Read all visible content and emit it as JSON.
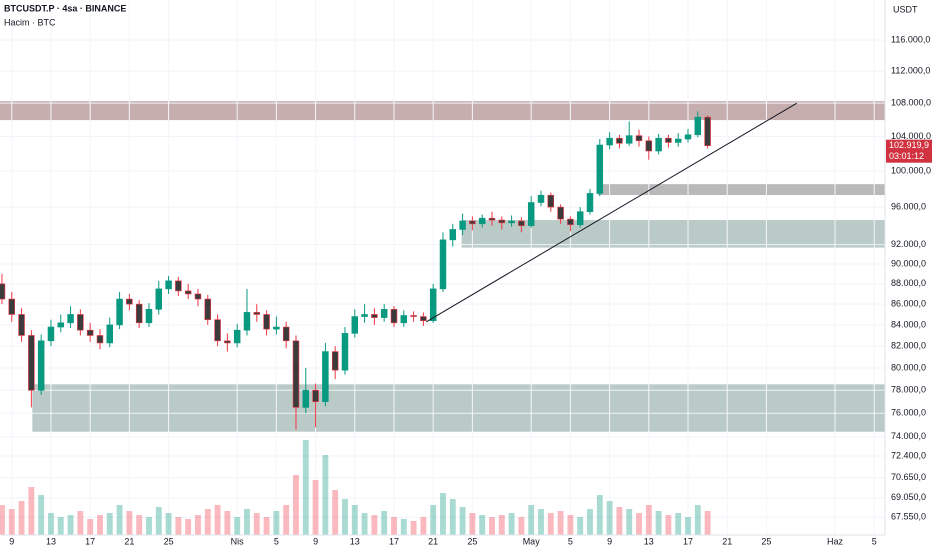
{
  "chart_data": {
    "type": "candlestick",
    "title": "BTCUSDT.P · 4sa · BINANCE",
    "subtitle": "Hacim · BTC",
    "y_axis_label": "USDT",
    "log_scale": true,
    "grid": true,
    "up_color": "#089981",
    "down_color": "#f23645",
    "xlim": [
      -1.2,
      89.1
    ],
    "ylim": [
      66200,
      121400
    ],
    "xticks": [
      {
        "value": 0,
        "label": "9"
      },
      {
        "value": 4,
        "label": "13"
      },
      {
        "value": 8,
        "label": "17"
      },
      {
        "value": 12,
        "label": "21"
      },
      {
        "value": 16,
        "label": "25"
      },
      {
        "value": 23,
        "label": "Nis"
      },
      {
        "value": 27,
        "label": "5"
      },
      {
        "value": 31,
        "label": "9"
      },
      {
        "value": 35,
        "label": "13"
      },
      {
        "value": 39,
        "label": "17"
      },
      {
        "value": 43,
        "label": "21"
      },
      {
        "value": 47,
        "label": "25"
      },
      {
        "value": 53,
        "label": "May"
      },
      {
        "value": 57,
        "label": "5"
      },
      {
        "value": 61,
        "label": "9"
      },
      {
        "value": 65,
        "label": "13"
      },
      {
        "value": 69,
        "label": "17"
      },
      {
        "value": 73,
        "label": "21"
      },
      {
        "value": 77,
        "label": "25"
      },
      {
        "value": 84,
        "label": "Haz"
      },
      {
        "value": 88,
        "label": "5"
      }
    ],
    "yticks": [
      {
        "value": 67550,
        "label": "67.550,0"
      },
      {
        "value": 69050,
        "label": "69.050,0"
      },
      {
        "value": 70650,
        "label": "70.650,0"
      },
      {
        "value": 72400,
        "label": "72.400,0"
      },
      {
        "value": 74000,
        "label": "74.000,0"
      },
      {
        "value": 76000,
        "label": "76.000,0"
      },
      {
        "value": 78000,
        "label": "78.000,0"
      },
      {
        "value": 80000,
        "label": "80.000,0"
      },
      {
        "value": 82000,
        "label": "82.000,0"
      },
      {
        "value": 84000,
        "label": "84.000,0"
      },
      {
        "value": 86000,
        "label": "86.000,0"
      },
      {
        "value": 88000,
        "label": "88.000,0"
      },
      {
        "value": 90000,
        "label": "90.000,0"
      },
      {
        "value": 92000,
        "label": "92.000,0"
      },
      {
        "value": 96000,
        "label": "96.000,0"
      },
      {
        "value": 100000,
        "label": "100.000,0"
      },
      {
        "value": 104000,
        "label": "104.000,0"
      },
      {
        "value": 108000,
        "label": "108.000,0"
      },
      {
        "value": 112000,
        "label": "112.000,0"
      },
      {
        "value": 116000,
        "label": "116.000,0"
      }
    ],
    "x": [
      -1,
      0,
      1,
      2,
      3,
      4,
      5,
      6,
      7,
      8,
      9,
      10,
      11,
      12,
      13,
      14,
      15,
      16,
      17,
      18,
      19,
      20,
      21,
      22,
      23,
      24,
      25,
      26,
      27,
      28,
      29,
      30,
      31,
      32,
      33,
      34,
      35,
      36,
      37,
      38,
      39,
      40,
      41,
      42,
      43,
      44,
      45,
      46,
      47,
      48,
      49,
      50,
      51,
      52,
      53,
      54,
      55,
      56,
      57,
      58,
      59,
      60,
      61,
      62,
      63,
      64,
      65,
      66,
      67,
      68,
      69,
      70,
      71
    ],
    "open": [
      88000,
      86500,
      85000,
      83000,
      78000,
      82500,
      83800,
      84200,
      85000,
      83500,
      83000,
      82300,
      84000,
      86500,
      86000,
      84200,
      85500,
      87500,
      88300,
      87300,
      87000,
      86500,
      84500,
      82500,
      82300,
      83500,
      85200,
      85000,
      83600,
      83800,
      82500,
      76500,
      78000,
      77000,
      81500,
      79800,
      83200,
      84800,
      85000,
      84700,
      85500,
      84200,
      84900,
      84800,
      84400,
      87500,
      92500,
      93600,
      94500,
      94200,
      94800,
      94600,
      94300,
      94500,
      94000,
      96500,
      97300,
      96000,
      94700,
      94100,
      95500,
      97500,
      103000,
      103800,
      103200,
      104100,
      103500,
      102300,
      103800,
      103300,
      103700,
      104200,
      106300
    ],
    "high": [
      89000,
      87200,
      85600,
      83500,
      83100,
      84500,
      85000,
      85800,
      85500,
      84200,
      83600,
      84700,
      87200,
      87000,
      86400,
      86100,
      88300,
      88800,
      88700,
      88000,
      87500,
      86900,
      85000,
      83200,
      84100,
      87500,
      86000,
      85400,
      84800,
      84300,
      83000,
      80000,
      78600,
      82300,
      82000,
      83800,
      85500,
      86000,
      85600,
      86000,
      85800,
      85400,
      85300,
      85200,
      88000,
      93300,
      94200,
      95300,
      95000,
      95200,
      95500,
      95000,
      95100,
      94900,
      97200,
      97800,
      97600,
      96300,
      95000,
      96000,
      98000,
      103700,
      104500,
      104200,
      105800,
      104800,
      104000,
      104300,
      104200,
      104400,
      104900,
      107000,
      106500
    ],
    "low": [
      86000,
      84300,
      82400,
      76500,
      77600,
      82000,
      83300,
      83700,
      83000,
      82400,
      81700,
      81900,
      83600,
      85400,
      83700,
      83800,
      85000,
      87000,
      86800,
      86500,
      85800,
      84000,
      82000,
      81500,
      81900,
      83000,
      84300,
      83000,
      83100,
      81800,
      74600,
      76000,
      74800,
      76600,
      79000,
      79400,
      82800,
      84200,
      84000,
      84300,
      83800,
      83800,
      84300,
      83900,
      84200,
      87200,
      91800,
      93000,
      93500,
      93800,
      94000,
      93600,
      93900,
      93300,
      93800,
      96100,
      95500,
      94200,
      93400,
      93800,
      95200,
      97200,
      102500,
      102600,
      102900,
      102800,
      101300,
      101900,
      102700,
      102800,
      103300,
      103900,
      102600
    ],
    "close": [
      86500,
      85000,
      83000,
      78000,
      82500,
      83800,
      84200,
      85000,
      83500,
      83000,
      82300,
      84000,
      86500,
      86000,
      84200,
      85500,
      87500,
      88300,
      87300,
      87000,
      86500,
      84500,
      82500,
      82300,
      83500,
      85200,
      85000,
      83600,
      83800,
      82500,
      76500,
      78000,
      77000,
      81500,
      79800,
      83200,
      84800,
      85000,
      84700,
      85500,
      84200,
      84900,
      84800,
      84400,
      87500,
      92500,
      93600,
      94500,
      94200,
      94800,
      94600,
      94300,
      94500,
      94000,
      96500,
      97300,
      96000,
      94700,
      94100,
      95500,
      97500,
      103000,
      103800,
      103200,
      104100,
      103500,
      102300,
      103800,
      103300,
      103700,
      104200,
      106300,
      102919.9
    ],
    "volume": [
      30,
      26,
      34,
      48,
      40,
      22,
      18,
      20,
      24,
      16,
      20,
      22,
      30,
      24,
      20,
      18,
      28,
      22,
      18,
      16,
      20,
      26,
      30,
      24,
      18,
      26,
      22,
      18,
      24,
      30,
      60,
      95,
      55,
      80,
      45,
      36,
      30,
      22,
      20,
      24,
      18,
      16,
      14,
      18,
      30,
      42,
      36,
      28,
      22,
      20,
      18,
      20,
      22,
      18,
      30,
      26,
      22,
      24,
      20,
      18,
      26,
      40,
      34,
      28,
      26,
      22,
      30,
      24,
      20,
      22,
      18,
      30,
      24
    ],
    "volume_lim": [
      0,
      100
    ],
    "zones": [
      {
        "x0": -1.2,
        "y0": 105950,
        "y1": 108250,
        "color": "#b89a9a"
      },
      {
        "x0": 59.8,
        "y0": 97320,
        "y1": 98530,
        "color": "#a8a8a8"
      },
      {
        "x0": 45.9,
        "y0": 91690,
        "y1": 94600,
        "color": "#a9bdb8"
      },
      {
        "x0": 2.1,
        "y0": 74420,
        "y1": 78530,
        "color": "#a9bdb8"
      }
    ],
    "trendline": {
      "x": [
        42.3,
        80.1
      ],
      "y": [
        84300,
        108000
      ]
    },
    "last_price": {
      "value": 102919.9,
      "label": "102.919,9"
    },
    "countdown": "03:01:12"
  }
}
